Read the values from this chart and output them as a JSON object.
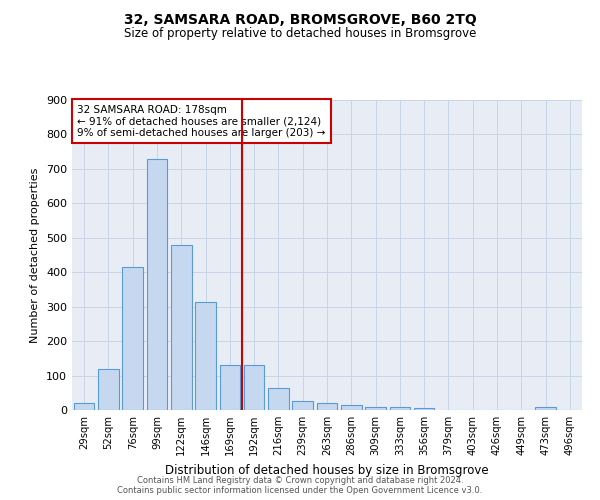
{
  "title1": "32, SAMSARA ROAD, BROMSGROVE, B60 2TQ",
  "title2": "Size of property relative to detached houses in Bromsgrove",
  "xlabel": "Distribution of detached houses by size in Bromsgrove",
  "ylabel": "Number of detached properties",
  "categories": [
    "29sqm",
    "52sqm",
    "76sqm",
    "99sqm",
    "122sqm",
    "146sqm",
    "169sqm",
    "192sqm",
    "216sqm",
    "239sqm",
    "263sqm",
    "286sqm",
    "309sqm",
    "333sqm",
    "356sqm",
    "379sqm",
    "403sqm",
    "426sqm",
    "449sqm",
    "473sqm",
    "496sqm"
  ],
  "values": [
    20,
    120,
    415,
    730,
    480,
    315,
    130,
    130,
    65,
    25,
    20,
    15,
    10,
    8,
    5,
    0,
    0,
    0,
    0,
    8,
    0
  ],
  "bar_color": "#c5d8f0",
  "bar_edge_color": "#5b9bd5",
  "vline_color": "#cc0000",
  "annotation_box_text": "32 SAMSARA ROAD: 178sqm\n← 91% of detached houses are smaller (2,124)\n9% of semi-detached houses are larger (203) →",
  "annotation_box_color": "#cc0000",
  "ylim": [
    0,
    900
  ],
  "yticks": [
    0,
    100,
    200,
    300,
    400,
    500,
    600,
    700,
    800,
    900
  ],
  "grid_color": "#c8d4e8",
  "bg_color": "#e8edf5",
  "footer1": "Contains HM Land Registry data © Crown copyright and database right 2024.",
  "footer2": "Contains public sector information licensed under the Open Government Licence v3.0."
}
